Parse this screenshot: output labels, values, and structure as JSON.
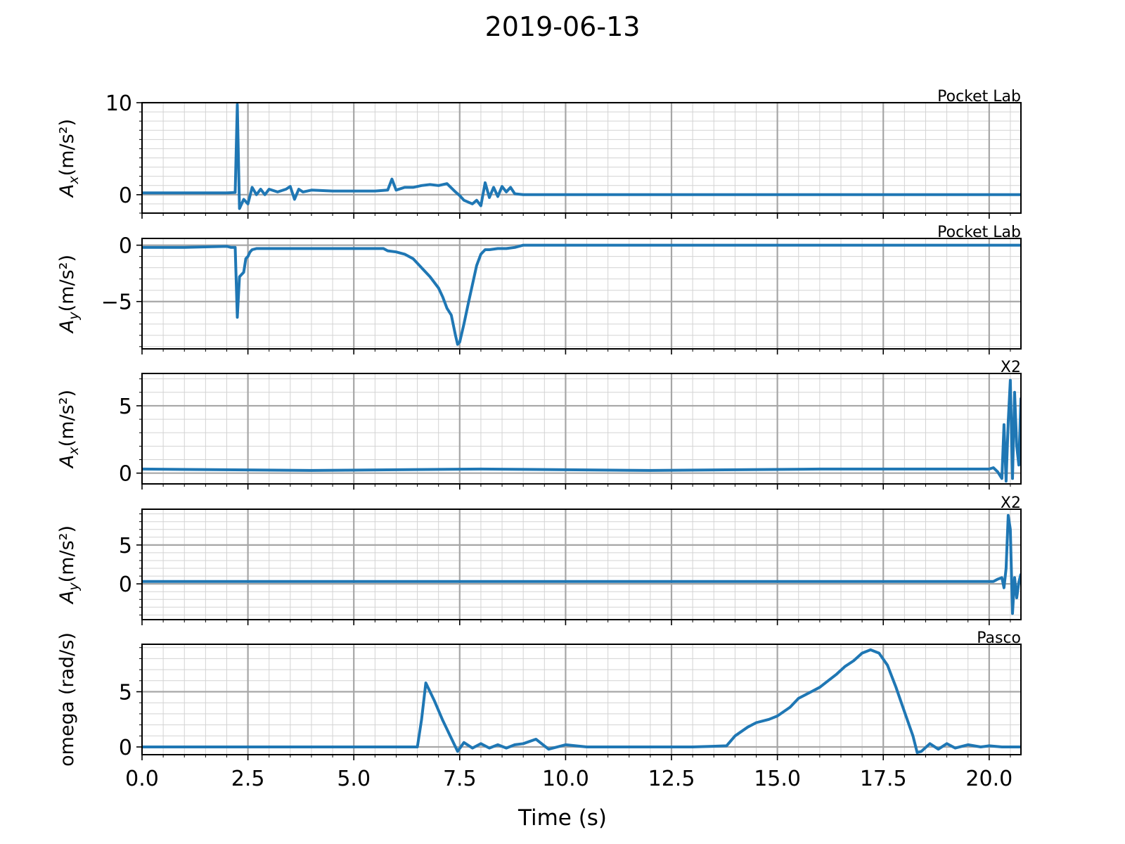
{
  "figure": {
    "title": "2019-06-13",
    "xlabel": "Time (s)",
    "line_color": "#1f77b4"
  },
  "chart_data": [
    {
      "type": "line",
      "source": "Pocket Lab",
      "ylabel_base": "A",
      "ylabel_sub": "x",
      "ylabel_unit_html": "(m/s²)",
      "ylim": [
        -2,
        10
      ],
      "yticks": [
        0,
        10
      ],
      "xlim": [
        0,
        20.75
      ],
      "xticks": [
        0.0,
        2.5,
        5.0,
        7.5,
        10.0,
        12.5,
        15.0,
        17.5,
        20.0
      ],
      "grid": true,
      "series": [
        {
          "x": [
            0,
            1.0,
            2.0,
            2.2,
            2.25,
            2.3,
            2.4,
            2.5,
            2.6,
            2.7,
            2.8,
            2.9,
            3.0,
            3.2,
            3.4,
            3.5,
            3.6,
            3.7,
            3.8,
            4.0,
            4.5,
            5.0,
            5.5,
            5.8,
            5.9,
            6.0,
            6.2,
            6.4,
            6.6,
            6.8,
            7.0,
            7.2,
            7.4,
            7.5,
            7.6,
            7.8,
            7.9,
            8.0,
            8.1,
            8.2,
            8.3,
            8.4,
            8.5,
            8.6,
            8.7,
            8.8,
            9.0,
            12.0,
            16.0,
            20.75
          ],
          "y": [
            0.2,
            0.2,
            0.2,
            0.25,
            9.8,
            -1.5,
            -0.5,
            -1.0,
            0.8,
            0.0,
            0.6,
            0.0,
            0.6,
            0.3,
            0.6,
            0.9,
            -0.5,
            0.6,
            0.3,
            0.5,
            0.4,
            0.4,
            0.4,
            0.5,
            1.7,
            0.5,
            0.8,
            0.8,
            1.0,
            1.1,
            1.0,
            1.2,
            0.3,
            -0.1,
            -0.6,
            -1.0,
            -0.6,
            -1.2,
            1.3,
            -0.3,
            0.8,
            -0.2,
            0.9,
            0.3,
            0.8,
            0.1,
            0.0,
            0.0,
            0.0,
            0.0
          ]
        }
      ]
    },
    {
      "type": "line",
      "source": "Pocket Lab",
      "ylabel_base": "A",
      "ylabel_sub": "y",
      "ylabel_unit_html": "(m/s²)",
      "ylim": [
        -9.2,
        0.6
      ],
      "yticks": [
        0,
        -5
      ],
      "xlim": [
        0,
        20.75
      ],
      "xticks": [
        0.0,
        2.5,
        5.0,
        7.5,
        10.0,
        12.5,
        15.0,
        17.5,
        20.0
      ],
      "grid": true,
      "series": [
        {
          "x": [
            0,
            1.0,
            2.0,
            2.1,
            2.2,
            2.25,
            2.3,
            2.35,
            2.4,
            2.45,
            2.5,
            2.55,
            2.6,
            2.7,
            3.0,
            4.0,
            5.0,
            5.7,
            5.8,
            6.0,
            6.2,
            6.4,
            6.6,
            6.8,
            7.0,
            7.1,
            7.2,
            7.3,
            7.4,
            7.45,
            7.5,
            7.6,
            7.7,
            7.8,
            7.9,
            8.0,
            8.1,
            8.2,
            8.4,
            8.6,
            8.8,
            9.0,
            12.0,
            16.0,
            20.75
          ],
          "y": [
            -0.2,
            -0.2,
            -0.1,
            -0.2,
            -0.2,
            -6.4,
            -2.8,
            -2.6,
            -2.4,
            -1.2,
            -1.0,
            -0.6,
            -0.4,
            -0.3,
            -0.3,
            -0.3,
            -0.3,
            -0.3,
            -0.5,
            -0.6,
            -0.8,
            -1.2,
            -2.0,
            -2.8,
            -3.8,
            -4.6,
            -5.6,
            -6.2,
            -8.0,
            -8.8,
            -8.6,
            -7.0,
            -5.2,
            -3.5,
            -1.8,
            -0.8,
            -0.4,
            -0.4,
            -0.3,
            -0.3,
            -0.2,
            0.0,
            0.0,
            0.0,
            0.0
          ]
        }
      ]
    },
    {
      "type": "line",
      "source": "X2",
      "ylabel_base": "A",
      "ylabel_sub": "x",
      "ylabel_unit_html": "(m/s²)",
      "ylim": [
        -0.8,
        7.4
      ],
      "yticks": [
        0,
        5
      ],
      "xlim": [
        0,
        20.75
      ],
      "xticks": [
        0.0,
        2.5,
        5.0,
        7.5,
        10.0,
        12.5,
        15.0,
        17.5,
        20.0
      ],
      "grid": true,
      "series": [
        {
          "x": [
            0,
            4.0,
            8.0,
            12.0,
            16.0,
            20.0,
            20.1,
            20.2,
            20.3,
            20.35,
            20.4,
            20.45,
            20.5,
            20.55,
            20.6,
            20.65,
            20.7,
            20.75
          ],
          "y": [
            0.3,
            0.2,
            0.3,
            0.2,
            0.3,
            0.3,
            0.4,
            0.1,
            -0.4,
            3.6,
            -0.6,
            3.8,
            6.9,
            -0.4,
            6.0,
            2.0,
            0.6,
            5.6
          ]
        }
      ]
    },
    {
      "type": "line",
      "source": "X2",
      "ylabel_base": "A",
      "ylabel_sub": "y",
      "ylabel_unit_html": "(m/s²)",
      "ylim": [
        -4.6,
        9.6
      ],
      "yticks": [
        0,
        5
      ],
      "xlim": [
        0,
        20.75
      ],
      "xticks": [
        0.0,
        2.5,
        5.0,
        7.5,
        10.0,
        12.5,
        15.0,
        17.5,
        20.0
      ],
      "grid": true,
      "series": [
        {
          "x": [
            0,
            4.0,
            8.0,
            12.0,
            16.0,
            20.0,
            20.1,
            20.2,
            20.3,
            20.35,
            20.4,
            20.45,
            20.5,
            20.55,
            20.6,
            20.65,
            20.7,
            20.75
          ],
          "y": [
            0.3,
            0.3,
            0.3,
            0.3,
            0.3,
            0.3,
            0.3,
            0.6,
            0.8,
            -0.5,
            2.0,
            8.8,
            7.0,
            -3.8,
            0.8,
            -1.8,
            0.2,
            1.3
          ]
        }
      ]
    },
    {
      "type": "line",
      "source": "Pasco",
      "ylabel_text": "omega (rad/s)",
      "ylim": [
        -0.7,
        9.3
      ],
      "yticks": [
        0,
        5
      ],
      "xlim": [
        0,
        20.75
      ],
      "xticks": [
        0.0,
        2.5,
        5.0,
        7.5,
        10.0,
        12.5,
        15.0,
        17.5,
        20.0
      ],
      "grid": true,
      "series": [
        {
          "x": [
            0,
            3.0,
            6.0,
            6.5,
            6.6,
            6.7,
            6.9,
            7.1,
            7.3,
            7.45,
            7.6,
            7.8,
            8.0,
            8.2,
            8.4,
            8.6,
            8.8,
            9.0,
            9.3,
            9.6,
            10.0,
            10.5,
            11.0,
            12.0,
            13.0,
            13.8,
            14.0,
            14.3,
            14.5,
            14.8,
            15.0,
            15.3,
            15.5,
            15.8,
            16.0,
            16.2,
            16.4,
            16.6,
            16.8,
            17.0,
            17.2,
            17.4,
            17.6,
            17.8,
            18.0,
            18.2,
            18.3,
            18.4,
            18.6,
            18.8,
            19.0,
            19.2,
            19.5,
            19.8,
            20.0,
            20.3,
            20.75
          ],
          "y": [
            0.0,
            0.0,
            0.0,
            0.0,
            2.5,
            5.8,
            4.2,
            2.4,
            0.8,
            -0.4,
            0.4,
            -0.1,
            0.3,
            -0.1,
            0.2,
            -0.1,
            0.2,
            0.3,
            0.7,
            -0.2,
            0.2,
            0.0,
            0.0,
            0.0,
            0.0,
            0.1,
            1.0,
            1.8,
            2.2,
            2.5,
            2.8,
            3.6,
            4.4,
            5.0,
            5.4,
            6.0,
            6.6,
            7.3,
            7.8,
            8.5,
            8.8,
            8.5,
            7.4,
            5.4,
            3.2,
            1.0,
            -0.5,
            -0.4,
            0.3,
            -0.2,
            0.3,
            -0.1,
            0.2,
            0.0,
            0.1,
            0.0,
            0.0
          ]
        }
      ]
    }
  ]
}
